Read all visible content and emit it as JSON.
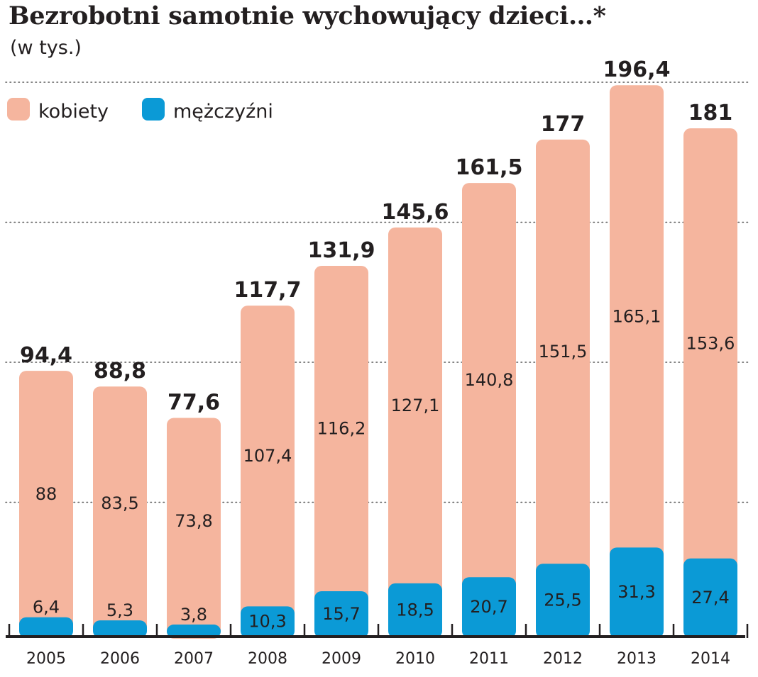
{
  "title": "Bezrobotni samotnie wychowujący dzieci…*",
  "subtitle": "(w tys.)",
  "colors": {
    "kobiety": "#f5b59e",
    "mezczyzni": "#0b9ad6",
    "text": "#231f20",
    "grid": "#5a5a5a"
  },
  "chart_data": {
    "type": "bar",
    "stacked": true,
    "title": "Bezrobotni samotnie wychowujący dzieci…*",
    "subtitle": "(w tys.)",
    "categories": [
      "2005",
      "2006",
      "2007",
      "2008",
      "2009",
      "2010",
      "2011",
      "2012",
      "2013",
      "2014"
    ],
    "series": [
      {
        "name": "mężczyźni",
        "values": [
          6.4,
          5.3,
          3.8,
          10.3,
          15.7,
          18.5,
          20.7,
          25.5,
          31.3,
          27.4
        ],
        "labels": [
          "6,4",
          "5,3",
          "3,8",
          "10,3",
          "15,7",
          "18,5",
          "20,7",
          "25,5",
          "31,3",
          "27,4"
        ]
      },
      {
        "name": "kobiety",
        "values": [
          88,
          83.5,
          73.8,
          107.4,
          116.2,
          127.1,
          140.8,
          151.5,
          165.1,
          153.6
        ],
        "labels": [
          "88",
          "83,5",
          "73,8",
          "107,4",
          "116,2",
          "127,1",
          "140,8",
          "151,5",
          "165,1",
          "153,6"
        ]
      }
    ],
    "totals": [
      94.4,
      88.8,
      77.6,
      117.7,
      131.9,
      145.6,
      161.5,
      177,
      196.4,
      181
    ],
    "total_labels": [
      "94,4",
      "88,8",
      "77,6",
      "117,7",
      "131,9",
      "145,6",
      "161,5",
      "177",
      "196,4",
      "181"
    ],
    "legend": [
      "kobiety",
      "mężczyźni"
    ],
    "legend_position": "top-left",
    "ylim": [
      0,
      200
    ],
    "grid": true,
    "xlabel": "",
    "ylabel": ""
  }
}
